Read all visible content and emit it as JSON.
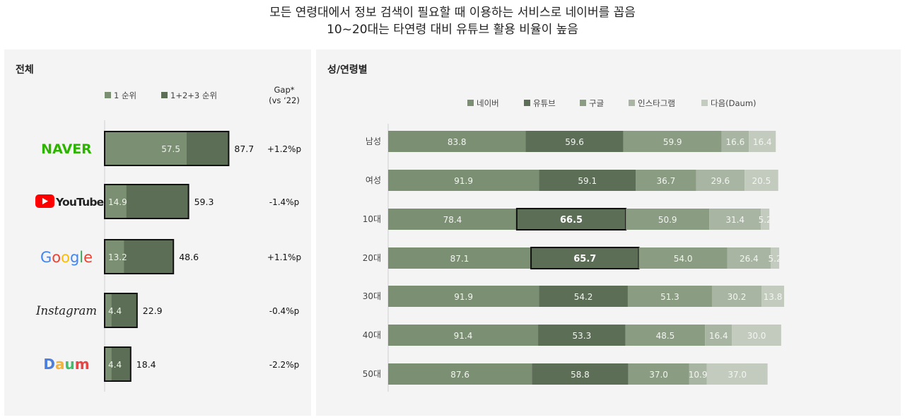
{
  "header": {
    "line1": "모든 연령대에서 정보 검색이 필요할 때 이용하는 서비스로 네이버를 꼽음",
    "line2": "10~20대는 타연령 대비 유튜브 활용 비율이 높음"
  },
  "colors": {
    "first": "#7b8f72",
    "total": "#5c6e56",
    "naver": "#7b8f72",
    "youtube": "#5c6e56",
    "google": "#8a9c82",
    "instagram": "#a9b5a3",
    "daum": "#c3cbbf",
    "brand_naver": "#2db400",
    "brand_youtube_red": "#ff0000"
  },
  "chart_data": [
    {
      "type": "bar",
      "panel_title": "전체",
      "legend": [
        "1 순위",
        "1+2+3 순위"
      ],
      "gap_header": [
        "Gap*",
        "(vs ‘22)"
      ],
      "categories": [
        "NAVER",
        "YouTube",
        "Google",
        "Instagram",
        "Daum"
      ],
      "icons": [
        "naver-logo-icon",
        "youtube-logo-icon",
        "google-logo-icon",
        "instagram-logo-icon",
        "daum-logo-icon"
      ],
      "series": [
        {
          "name": "1 순위",
          "values": [
            57.5,
            14.9,
            13.2,
            4.4,
            4.4
          ]
        },
        {
          "name": "1+2+3 순위",
          "values": [
            87.7,
            59.3,
            48.6,
            22.9,
            18.4
          ]
        }
      ],
      "gap": [
        "+1.2%p",
        "-1.4%p",
        "+1.1%p",
        "-0.4%p",
        "-2.2%p"
      ],
      "ylim": [
        0,
        100
      ]
    },
    {
      "type": "bar",
      "stacked": true,
      "panel_title": "성/연령별",
      "categories": [
        "남성",
        "여성",
        "10대",
        "20대",
        "30대",
        "40대",
        "50대"
      ],
      "series": [
        {
          "name": "네이버",
          "values": [
            83.8,
            91.9,
            78.4,
            87.1,
            91.9,
            91.4,
            87.6
          ]
        },
        {
          "name": "유튜브",
          "values": [
            59.6,
            59.1,
            66.5,
            65.7,
            54.2,
            53.3,
            58.8
          ]
        },
        {
          "name": "구글",
          "values": [
            59.9,
            36.7,
            50.9,
            54.0,
            51.3,
            48.5,
            37.0
          ]
        },
        {
          "name": "인스타그램",
          "values": [
            16.6,
            29.6,
            31.4,
            26.4,
            30.2,
            16.4,
            10.9
          ]
        },
        {
          "name": "다음(Daum)",
          "values": [
            16.4,
            20.5,
            5.2,
            5.2,
            13.8,
            30.0,
            37.0
          ]
        }
      ],
      "highlight": [
        {
          "category": "10대",
          "series": "유튜브"
        },
        {
          "category": "20대",
          "series": "유튜브"
        }
      ]
    }
  ]
}
